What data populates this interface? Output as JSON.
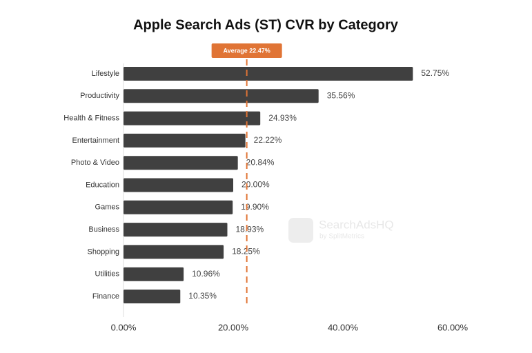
{
  "chart_data": {
    "type": "bar",
    "orientation": "horizontal",
    "title": "Apple Search Ads (ST) CVR by Category",
    "categories": [
      "Lifestyle",
      "Productivity",
      "Health & Fitness",
      "Entertainment",
      "Photo & Video",
      "Education",
      "Games",
      "Business",
      "Shopping",
      "Utilities",
      "Finance"
    ],
    "values": [
      52.75,
      35.56,
      24.93,
      22.22,
      20.84,
      20.0,
      19.9,
      18.93,
      18.25,
      10.96,
      10.35
    ],
    "value_labels": [
      "52.75%",
      "35.56%",
      "24.93%",
      "22.22%",
      "20.84%",
      "20.00%",
      "19.90%",
      "18.93%",
      "18.25%",
      "10.96%",
      "10.35%"
    ],
    "color": "#404040",
    "xlim": [
      0,
      60
    ],
    "xticks": [
      {
        "value": 0,
        "label": "0.00%"
      },
      {
        "value": 20,
        "label": "20.00%"
      },
      {
        "value": 40,
        "label": "40.00%"
      },
      {
        "value": 60,
        "label": "60.00%"
      }
    ],
    "average": {
      "value": 22.47,
      "label": "Average 22.47%",
      "color": "#e07435"
    },
    "watermark": {
      "name": "SearchAdsHQ",
      "byline": "by SplitMetrics"
    }
  }
}
